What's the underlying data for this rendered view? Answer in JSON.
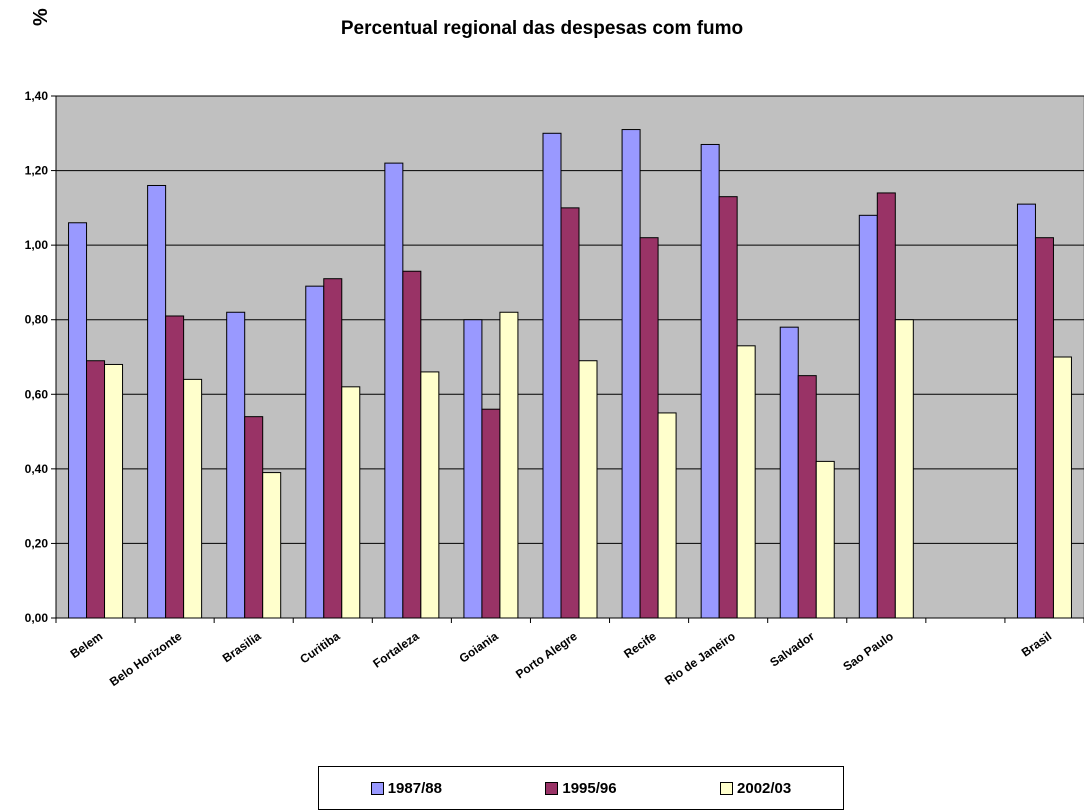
{
  "chart_data": {
    "type": "bar",
    "title": "Percentual regional das despesas com fumo",
    "ylabel": "%",
    "xlabel": "",
    "ylim": [
      0,
      1.4
    ],
    "yticks": [
      "0,00",
      "0,20",
      "0,40",
      "0,60",
      "0,80",
      "1,00",
      "1,20",
      "1,40"
    ],
    "grid": true,
    "plot_background": "#c0c0c0",
    "legend_position": "bottom",
    "categories": [
      "Belem",
      "Belo Horizonte",
      "Brasilia",
      "Curitiba",
      "Fortaleza",
      "Goiania",
      "Porto Alegre",
      "Recife",
      "Rio de Janeiro",
      "Salvador",
      "Sao Paulo",
      "",
      "Brasil"
    ],
    "series": [
      {
        "name": "1987/88",
        "color": "#9999ff",
        "values": [
          1.06,
          1.16,
          0.82,
          0.89,
          1.22,
          0.8,
          1.3,
          1.31,
          1.27,
          0.78,
          1.08,
          null,
          1.11
        ]
      },
      {
        "name": "1995/96",
        "color": "#993366",
        "values": [
          0.69,
          0.81,
          0.54,
          0.91,
          0.93,
          0.56,
          1.1,
          1.02,
          1.13,
          0.65,
          1.14,
          null,
          1.02
        ]
      },
      {
        "name": "2002/03",
        "color": "#ffffcc",
        "values": [
          0.68,
          0.64,
          0.39,
          0.62,
          0.66,
          0.82,
          0.69,
          0.55,
          0.73,
          0.42,
          0.8,
          null,
          0.7
        ]
      }
    ]
  }
}
